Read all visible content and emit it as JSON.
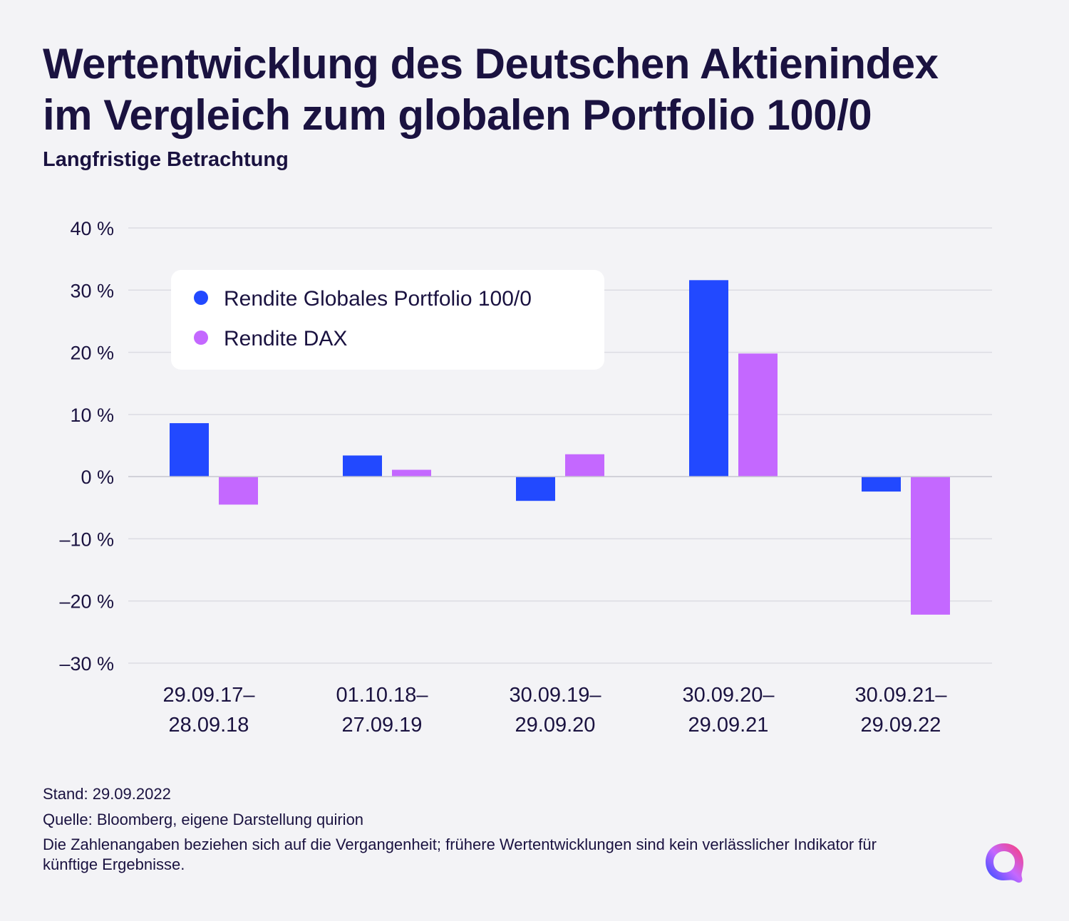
{
  "title_line1": "Wertentwicklung des Deutschen Aktienindex",
  "title_line2": "im Vergleich zum globalen Portfolio 100/0",
  "subtitle": "Langfristige Betrachtung",
  "chart_data": {
    "type": "bar",
    "categories": [
      [
        "29.09.17–",
        "28.09.18"
      ],
      [
        "01.10.18–",
        "27.09.19"
      ],
      [
        "30.09.19–",
        "29.09.20"
      ],
      [
        "30.09.20–",
        "29.09.21"
      ],
      [
        "30.09.21–",
        "29.09.22"
      ]
    ],
    "series": [
      {
        "name": "Rendite Globales Portfolio 100/0",
        "color": "#2249ff",
        "values": [
          8.6,
          3.4,
          -3.9,
          31.6,
          -2.4
        ]
      },
      {
        "name": "Rendite DAX",
        "color": "#c468ff",
        "values": [
          -4.5,
          1.1,
          3.6,
          19.8,
          -22.2
        ]
      }
    ],
    "yticks": [
      40,
      30,
      20,
      10,
      0,
      -10,
      -20,
      -30
    ],
    "ytick_labels": [
      "40 %",
      "30 %",
      "20 %",
      "10 %",
      "0 %",
      "–10 %",
      "–20 %",
      "–30 %"
    ],
    "ylim": [
      -30,
      40
    ],
    "grid": true,
    "legend_position": "top-left"
  },
  "footer": {
    "stand": "Stand: 29.09.2022",
    "quelle": "Quelle: Bloomberg, eigene Darstellung quirion",
    "disclaimer": "Die Zahlenangaben beziehen sich auf die Vergangenheit; frühere Wertentwicklungen sind kein verlässlicher Indikator für künftige Ergebnisse."
  },
  "logo": {
    "icon": "quirion-logo-icon"
  }
}
